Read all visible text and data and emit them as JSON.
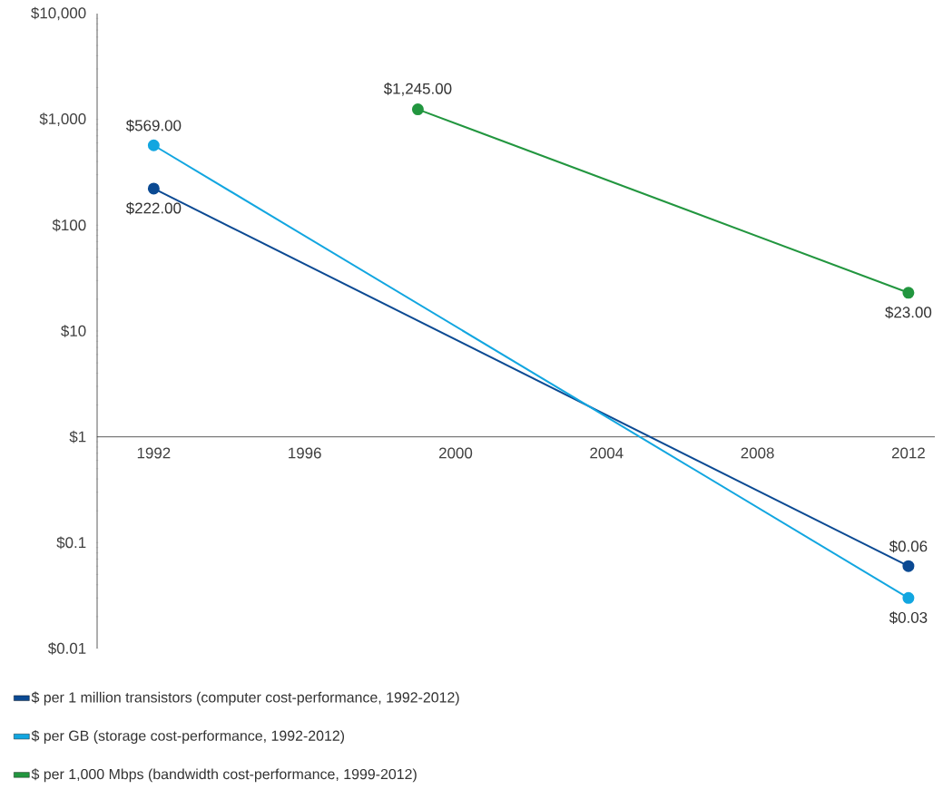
{
  "chart_data": {
    "type": "line",
    "log": "y",
    "marker": "circle",
    "line_style": "solid",
    "grid": false,
    "legend": "bottom",
    "xlim": [
      1990.5,
      2012.7
    ],
    "xticks": [
      1992,
      1996,
      2000,
      2004,
      2008,
      2012
    ],
    "ylim": [
      0.01,
      10000
    ],
    "yticks": [
      {
        "value": 0.01,
        "label": "$0.01"
      },
      {
        "value": 0.1,
        "label": "$0.1"
      },
      {
        "value": 1,
        "label": "$1"
      },
      {
        "value": 10,
        "label": "$10"
      },
      {
        "value": 100,
        "label": "$100"
      },
      {
        "value": 1000,
        "label": "$1,000"
      },
      {
        "value": 10000,
        "label": "$10,000"
      }
    ],
    "series": [
      {
        "name": "$ per 1 million transistors (computer cost-performance, 1992-2012)",
        "color": "#0b4a93",
        "x": [
          1992,
          2012
        ],
        "values": [
          222,
          0.06
        ],
        "value_labels": [
          "$222.00",
          "$0.06"
        ]
      },
      {
        "name": "$ per GB (storage cost-performance, 1992-2012)",
        "color": "#12a6e0",
        "x": [
          1992,
          2012
        ],
        "values": [
          569,
          0.03
        ],
        "value_labels": [
          "$569.00",
          "$0.03"
        ]
      },
      {
        "name": "$ per 1,000 Mbps (bandwidth cost-performance, 1999-2012)",
        "color": "#22963f",
        "x": [
          1999,
          2012
        ],
        "values": [
          1245,
          23
        ],
        "value_labels": [
          "$1,245.00",
          "$23.00"
        ]
      }
    ]
  }
}
